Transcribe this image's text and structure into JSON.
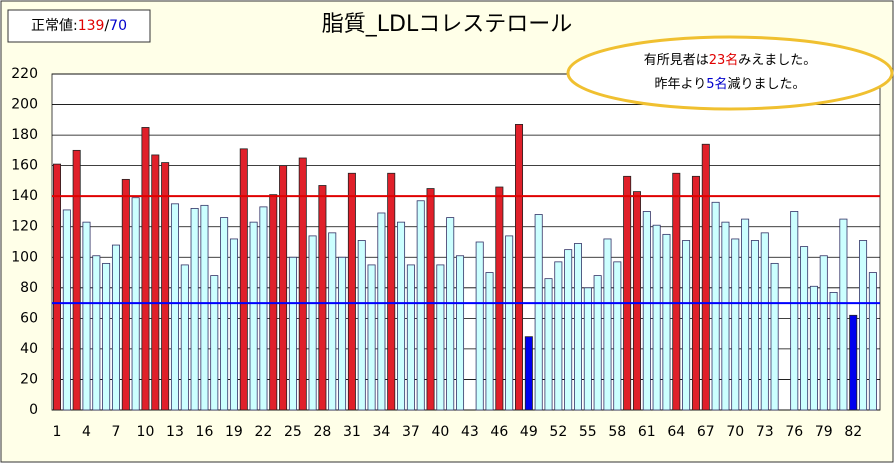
{
  "chart_data": {
    "type": "bar",
    "title": "脂質_LDLコレステロール",
    "legend_box": {
      "label": "正常値:",
      "high": "139",
      "separator": "/",
      "low": "70"
    },
    "annotation": {
      "line1": [
        "有所見者は",
        "23名",
        "みえました。"
      ],
      "line2": [
        "昨年より",
        "5名",
        "減りました。"
      ]
    },
    "categories": [
      "1",
      null,
      null,
      "4",
      null,
      null,
      "7",
      null,
      null,
      "10",
      null,
      null,
      "13",
      null,
      null,
      "16",
      null,
      null,
      "19",
      null,
      null,
      "22",
      null,
      null,
      "25",
      null,
      null,
      "28",
      null,
      null,
      "31",
      null,
      null,
      "34",
      null,
      null,
      "37",
      null,
      null,
      "40",
      null,
      null,
      "43",
      null,
      null,
      "46",
      null,
      null,
      "49",
      null,
      null,
      "52",
      null,
      null,
      "55",
      null,
      null,
      "58",
      null,
      null,
      "61",
      null,
      null,
      "64",
      null,
      null,
      "67",
      null,
      null,
      "70",
      null,
      null,
      "73",
      null,
      null,
      "76",
      null,
      null,
      "79",
      null,
      null,
      "82",
      null,
      null
    ],
    "values": [
      161,
      131,
      170,
      123,
      101,
      96,
      108,
      151,
      139,
      185,
      167,
      162,
      135,
      95,
      132,
      134,
      88,
      126,
      112,
      171,
      123,
      133,
      141,
      160,
      100,
      165,
      114,
      147,
      116,
      100,
      155,
      111,
      95,
      129,
      155,
      123,
      95,
      137,
      145,
      95,
      126,
      101,
      null,
      110,
      90,
      146,
      114,
      187,
      48,
      128,
      86,
      97,
      105,
      109,
      80,
      88,
      112,
      97,
      153,
      143,
      130,
      121,
      115,
      155,
      111,
      153,
      174,
      136,
      123,
      112,
      125,
      111,
      116,
      96,
      null,
      130,
      107,
      81,
      101,
      77,
      125,
      62,
      111,
      90
    ],
    "colors": {
      "high": "#e0202a",
      "normal": "#ccffff",
      "low": "#0000ee"
    },
    "reference_lines": [
      {
        "value": 140,
        "color": "#e00000"
      },
      {
        "value": 70,
        "color": "#0000ff"
      }
    ],
    "ylim": [
      0,
      220
    ],
    "yticks": [
      0,
      20,
      40,
      60,
      80,
      100,
      120,
      140,
      160,
      180,
      200,
      220
    ],
    "grid": true
  }
}
